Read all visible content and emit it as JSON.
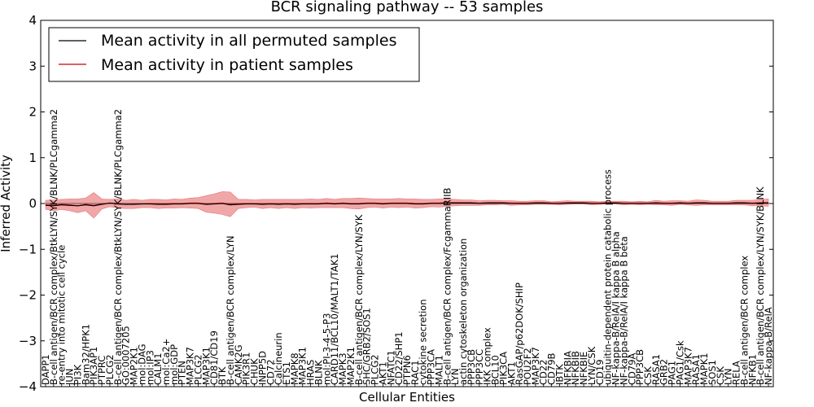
{
  "chart_data": {
    "type": "line",
    "title": "BCR signaling pathway -- 53 samples",
    "xlabel": "Cellular Entities",
    "ylabel": "Inferred Activity",
    "ylim": [
      -4,
      4
    ],
    "yticks": [
      -4,
      -3,
      -2,
      -1,
      0,
      1,
      2,
      3,
      4
    ],
    "grid": false,
    "legend_placement": "top-left",
    "categories": [
      "DAPP1",
      "B-cell antigen/BCR complex/BtkLYN/SYK/BLNK/PLCgamma2",
      "re-entry into mitotic cell cycle",
      "JUN",
      "PI3K",
      "Bam32/HPK1",
      "PIK3AP1",
      "PTPRC",
      "PLCG2",
      "B-cell antigen/BCR complex/BtkLYN/SYK/BLNK/PLCgamma2",
      "GO:0007205",
      "MAP2K1",
      "mol:DAG",
      "mol:IP3",
      "CALM1",
      "mol:Ca2+",
      "mol:GDP",
      "PTEN",
      "MAP3K7",
      "PLCG2",
      "MAP3K1",
      "CD81/CD19",
      "BTK",
      "B-cell antigen/BCR complex/LYN",
      "CAMK2G",
      "PIK3R1",
      "CHUK",
      "INPP5D",
      "CD72",
      "Calcineurin",
      "ETS1",
      "MAPK8",
      "MAP3K1",
      "HRAS",
      "BLNK",
      "mol:PI-3-4-5-P3",
      "CARD11/BCL10/MALT1/TAK1",
      "MAPK3",
      "MAP2K1",
      "B-cell antigen/BCR complex/LYN/SYK",
      "SHC/GRB2/SOS1",
      "PLCG2",
      "AKT1",
      "NFATC1",
      "CD22/SHP1",
      "PTPN6",
      "RAC1",
      "cytokine secretion",
      "PPP3CA",
      "MALT1",
      "B-cell antigen/BCR complex/FcgammaRIIB",
      "LYN",
      "actin cytoskeleton organization",
      "PPP3CB",
      "PPP3CC",
      "IKK complex",
      "BCL10",
      "PIK3CA",
      "AKT1",
      "RasGAP/p62DOK/SHIP",
      "POU2F2",
      "MAP3K7",
      "CD22",
      "CD79B",
      "IBTK",
      "NFKBIA",
      "NFKBIB",
      "NFKBIE",
      "LYN/CSK",
      "CD19",
      "ubiquitin-dependent protein catabolic process",
      "NF-kappa-B/RelA/I kappa B alpha",
      "NF-kappa-B/RelA/I kappa B beta",
      "CD79A",
      "PPP3CB",
      "CSK",
      "RASA1",
      "GRB2",
      "PAG1",
      "PAG1/Csk",
      "MAP3K7",
      "RASA1",
      "MAPK1",
      "SOS1",
      "CSK",
      "LYN",
      "RELA",
      "B-cell antigen/BCR complex",
      "NFKB1",
      "B-cell antigen/BCR complex/LYN/SYK/BLNK",
      "NF-kappa-B/RelA"
    ],
    "series": [
      {
        "name": "Mean activity in all permuted samples",
        "color": "#000000",
        "mean": [
          -0.04,
          -0.05,
          -0.03,
          -0.04,
          -0.05,
          -0.03,
          -0.05,
          -0.02,
          0.01,
          -0.01,
          -0.02,
          -0.02,
          -0.01,
          -0.01,
          -0.02,
          -0.02,
          -0.01,
          -0.01,
          0.0,
          0.0,
          -0.02,
          -0.01,
          0.0,
          -0.03,
          -0.02,
          -0.01,
          -0.01,
          -0.02,
          -0.01,
          -0.02,
          -0.01,
          -0.02,
          -0.01,
          -0.01,
          -0.01,
          0.0,
          -0.01,
          0.0,
          -0.01,
          -0.01,
          0.0,
          0.0,
          -0.01,
          0.0,
          0.0,
          0.0,
          -0.01,
          -0.01,
          0.0,
          0.0,
          0.01,
          0.01,
          0.01,
          0.01,
          0.0,
          0.01,
          0.01,
          0.01,
          0.0,
          0.0,
          0.0,
          0.01,
          0.01,
          0.0,
          0.0,
          0.01,
          0.01,
          0.01,
          0.0,
          0.0,
          0.01,
          0.01,
          0.0,
          0.0,
          0.0,
          0.0,
          0.01,
          0.0,
          0.0,
          0.01,
          0.0,
          0.01,
          0.01,
          0.0,
          0.0,
          0.0,
          0.01,
          0.01,
          0.0,
          0.01,
          0.01
        ]
      },
      {
        "name": "Mean activity in patient samples",
        "color": "#cc0000",
        "band_color": "#e8787a",
        "mean": [
          -0.03,
          -0.04,
          -0.02,
          -0.03,
          -0.05,
          -0.02,
          -0.04,
          -0.01,
          0.01,
          0.0,
          -0.02,
          -0.01,
          -0.01,
          0.0,
          -0.01,
          -0.01,
          0.0,
          0.0,
          0.01,
          0.01,
          -0.01,
          0.0,
          0.01,
          -0.02,
          -0.01,
          0.0,
          0.0,
          -0.01,
          0.0,
          -0.01,
          0.0,
          -0.01,
          0.0,
          0.0,
          0.0,
          0.01,
          0.0,
          0.01,
          0.0,
          0.0,
          0.01,
          0.01,
          0.0,
          0.01,
          0.01,
          0.01,
          0.0,
          0.0,
          0.01,
          0.01,
          0.02,
          0.02,
          0.02,
          0.02,
          0.01,
          0.02,
          0.02,
          0.02,
          0.01,
          0.01,
          0.01,
          0.02,
          0.02,
          0.01,
          0.01,
          0.02,
          0.02,
          0.02,
          0.01,
          0.01,
          0.02,
          0.02,
          0.01,
          0.01,
          0.01,
          0.01,
          0.02,
          0.01,
          0.01,
          0.02,
          0.01,
          0.02,
          0.02,
          0.01,
          0.01,
          0.01,
          0.02,
          0.02,
          0.01,
          0.02,
          0.02
        ],
        "spread": [
          0.1,
          0.12,
          0.11,
          0.13,
          0.15,
          0.14,
          0.28,
          0.11,
          0.08,
          0.1,
          0.09,
          0.1,
          0.08,
          0.09,
          0.1,
          0.09,
          0.1,
          0.09,
          0.11,
          0.12,
          0.18,
          0.21,
          0.25,
          0.27,
          0.1,
          0.09,
          0.08,
          0.1,
          0.09,
          0.1,
          0.09,
          0.1,
          0.09,
          0.1,
          0.09,
          0.1,
          0.09,
          0.1,
          0.11,
          0.12,
          0.1,
          0.09,
          0.1,
          0.09,
          0.1,
          0.09,
          0.1,
          0.09,
          0.08,
          0.09,
          0.08,
          0.07,
          0.06,
          0.06,
          0.05,
          0.05,
          0.05,
          0.04,
          0.05,
          0.04,
          0.04,
          0.04,
          0.04,
          0.03,
          0.04,
          0.04,
          0.03,
          0.03,
          0.04,
          0.03,
          0.03,
          0.03,
          0.04,
          0.03,
          0.04,
          0.03,
          0.05,
          0.04,
          0.05,
          0.04,
          0.04,
          0.06,
          0.05,
          0.04,
          0.04,
          0.04,
          0.05,
          0.05,
          0.06,
          0.07,
          0.08
        ]
      }
    ]
  }
}
